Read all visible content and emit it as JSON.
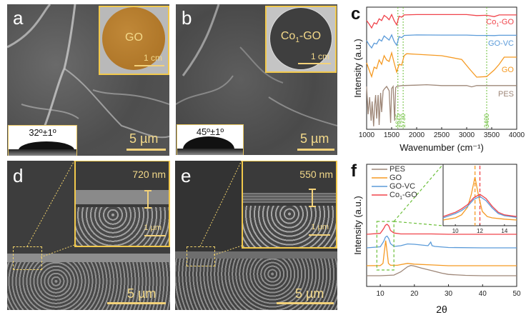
{
  "panels": {
    "a": {
      "letter": "a",
      "inset_label": "GO",
      "inset_scale": "1 cm",
      "contact_angle": "32º±1º",
      "scale": "5 µm",
      "disk_color": "#b47a2a"
    },
    "b": {
      "letter": "b",
      "inset_label": "Co1-GO",
      "inset_label_main": "Co",
      "inset_label_sub": "1",
      "inset_label_rest": "-GO",
      "inset_scale": "1 cm",
      "contact_angle": "45º±1º",
      "scale": "5 µm",
      "disk_color": "#3d3d3d"
    },
    "d": {
      "letter": "d",
      "thickness": "720 nm",
      "inset_scale": "1 µm",
      "scale": "5 µm"
    },
    "e": {
      "letter": "e",
      "thickness": "550 nm",
      "inset_scale": "1 µm",
      "scale": "5 µm"
    }
  },
  "chart_data": [
    {
      "panel": "c",
      "type": "line",
      "title": "",
      "xlabel": "Wavenumber (cm⁻¹)",
      "ylabel": "Intensity (a.u.)",
      "xlim": [
        1000,
        4000
      ],
      "xticks": [
        1000,
        1500,
        2000,
        2500,
        3000,
        3500,
        4000
      ],
      "reference_lines": [
        {
          "x": 1625,
          "label": "1625",
          "color": "#6cbf3a"
        },
        {
          "x": 1730,
          "label": "1730",
          "color": "#6cbf3a"
        },
        {
          "x": 3400,
          "label": "3400",
          "color": "#6cbf3a"
        }
      ],
      "series": [
        {
          "name": "Co1-GO",
          "label_main": "Co",
          "label_sub": "1",
          "label_rest": "-GO",
          "color": "#f0434a",
          "x": [
            1000,
            1050,
            1100,
            1150,
            1200,
            1250,
            1300,
            1350,
            1400,
            1450,
            1500,
            1550,
            1600,
            1650,
            1700,
            1750,
            2000,
            2500,
            3000,
            3200,
            3400,
            3550,
            3650,
            3800,
            4000
          ],
          "y": [
            0.55,
            0.35,
            0.12,
            0.42,
            0.35,
            0.65,
            0.55,
            0.85,
            0.75,
            0.6,
            0.9,
            0.55,
            0.3,
            0.8,
            0.75,
            0.88,
            0.9,
            0.9,
            0.9,
            0.84,
            0.86,
            0.78,
            0.88,
            0.88,
            0.88
          ]
        },
        {
          "name": "GO-VC",
          "color": "#5b9bd9",
          "x": [
            1000,
            1050,
            1100,
            1150,
            1200,
            1250,
            1300,
            1350,
            1400,
            1450,
            1500,
            1550,
            1600,
            1650,
            1700,
            1750,
            2000,
            2500,
            3000,
            3200,
            3400,
            3550,
            3650,
            3800,
            4000
          ],
          "y": [
            0.55,
            0.3,
            0.12,
            0.4,
            0.35,
            0.62,
            0.52,
            0.82,
            0.7,
            0.58,
            0.88,
            0.5,
            0.28,
            0.78,
            0.72,
            0.85,
            0.88,
            0.87,
            0.87,
            0.85,
            0.85,
            0.84,
            0.86,
            0.86,
            0.86
          ]
        },
        {
          "name": "GO",
          "color": "#f59a23",
          "x": [
            1000,
            1050,
            1100,
            1150,
            1200,
            1250,
            1300,
            1350,
            1400,
            1450,
            1500,
            1550,
            1600,
            1650,
            1700,
            1750,
            1800,
            2000,
            2500,
            2900,
            3050,
            3200,
            3400,
            3550,
            3650,
            3750,
            4000
          ],
          "y": [
            0.6,
            0.35,
            0.12,
            0.45,
            0.4,
            0.7,
            0.55,
            0.85,
            0.7,
            0.65,
            0.95,
            0.6,
            0.28,
            0.55,
            0.52,
            0.85,
            0.92,
            0.9,
            0.85,
            0.72,
            0.4,
            0.1,
            0.12,
            0.35,
            0.55,
            0.8,
            0.8
          ]
        },
        {
          "name": "PES",
          "color": "#9e8778",
          "x": [
            1000,
            1030,
            1060,
            1090,
            1110,
            1140,
            1160,
            1180,
            1200,
            1230,
            1250,
            1280,
            1300,
            1330,
            1360,
            1400,
            1450,
            1480,
            1500,
            1530,
            1560,
            1580,
            1600,
            1650,
            1700,
            2000,
            2200,
            2500,
            3000,
            3100,
            3200,
            3500,
            4000
          ],
          "y": [
            0.95,
            0.3,
            0.7,
            0.15,
            0.6,
            0.02,
            0.5,
            0.75,
            0.2,
            0.75,
            0.05,
            0.8,
            0.35,
            0.85,
            0.9,
            0.95,
            0.85,
            0.1,
            0.9,
            0.95,
            0.15,
            0.92,
            0.95,
            0.96,
            0.97,
            0.98,
            0.99,
            0.97,
            0.97,
            0.94,
            0.97,
            0.97,
            0.97
          ]
        }
      ]
    },
    {
      "panel": "f",
      "type": "line",
      "title": "",
      "xlabel": "2θ",
      "ylabel": "Intensity (a.u.)",
      "xlim": [
        6,
        50
      ],
      "xticks": [
        10,
        20,
        30,
        40,
        50
      ],
      "legend": "top-left",
      "highlight_box": {
        "x": [
          9,
          14
        ]
      },
      "series": [
        {
          "name": "PES",
          "color": "#9e8778",
          "x": [
            6,
            10,
            14,
            16,
            18,
            19,
            20,
            22,
            25,
            28,
            30,
            35,
            40,
            45,
            50
          ],
          "y": [
            0.0,
            0.0,
            0.05,
            0.3,
            0.7,
            0.8,
            0.75,
            0.6,
            0.4,
            0.2,
            0.1,
            0.03,
            0.0,
            0.0,
            0.0
          ]
        },
        {
          "name": "GO",
          "color": "#f59a23",
          "x": [
            6,
            10,
            10.8,
            11.2,
            11.6,
            12.0,
            12.4,
            13,
            15,
            18,
            20,
            25,
            30,
            40,
            50
          ],
          "y": [
            0.0,
            0.02,
            0.3,
            1.8,
            3.2,
            1.8,
            0.3,
            0.05,
            0.05,
            0.3,
            0.2,
            0.1,
            0.0,
            0.0,
            0.0
          ]
        },
        {
          "name": "GO-VC",
          "color": "#5b9bd9",
          "x": [
            6,
            10,
            11,
            11.5,
            12,
            12.5,
            13,
            14,
            16,
            18,
            20,
            22,
            24,
            24.8,
            25.2,
            26,
            30,
            40,
            50
          ],
          "y": [
            0.0,
            0.15,
            0.9,
            1.5,
            1.65,
            1.3,
            0.6,
            0.2,
            0.3,
            0.55,
            0.5,
            0.4,
            0.3,
            0.8,
            0.3,
            0.2,
            0.05,
            0.0,
            0.0
          ]
        },
        {
          "name": "Co1-GO",
          "label_main": "Co",
          "label_sub": "1",
          "label_rest": "-GO",
          "color": "#f0434a",
          "x": [
            6,
            10,
            11,
            11.5,
            12,
            12.5,
            13,
            14,
            16,
            20,
            25,
            30,
            40,
            50
          ],
          "y": [
            0.0,
            0.15,
            0.9,
            1.4,
            1.55,
            1.3,
            0.6,
            0.2,
            0.05,
            0.05,
            0.05,
            0.0,
            0.0,
            0.0
          ]
        }
      ]
    },
    {
      "panel": "f-inset",
      "type": "line",
      "xlim": [
        9,
        15
      ],
      "xticks": [
        10,
        12,
        14
      ],
      "reference_lines": [
        {
          "x": 11.6,
          "color": "#f59a23"
        },
        {
          "x": 12.0,
          "color": "#f0434a"
        }
      ],
      "series": [
        {
          "name": "GO",
          "color": "#f59a23",
          "x": [
            9,
            10,
            10.5,
            11,
            11.3,
            11.6,
            11.9,
            12.2,
            12.6,
            13,
            14,
            15
          ],
          "y": [
            0.0,
            0.05,
            0.12,
            0.3,
            0.6,
            1.0,
            0.55,
            0.2,
            0.08,
            0.05,
            0.02,
            0.0
          ]
        },
        {
          "name": "GO-VC",
          "color": "#5b9bd9",
          "x": [
            9,
            10,
            10.5,
            11,
            11.5,
            12,
            12.5,
            13,
            13.5,
            14,
            15
          ],
          "y": [
            0.05,
            0.15,
            0.22,
            0.32,
            0.48,
            0.55,
            0.45,
            0.28,
            0.15,
            0.1,
            0.06
          ]
        },
        {
          "name": "Co1-GO",
          "color": "#f0434a",
          "x": [
            9,
            10,
            10.5,
            11,
            11.5,
            12,
            12.5,
            13,
            13.5,
            14,
            15
          ],
          "y": [
            0.08,
            0.18,
            0.26,
            0.36,
            0.52,
            0.6,
            0.5,
            0.32,
            0.18,
            0.12,
            0.08
          ]
        }
      ]
    }
  ]
}
